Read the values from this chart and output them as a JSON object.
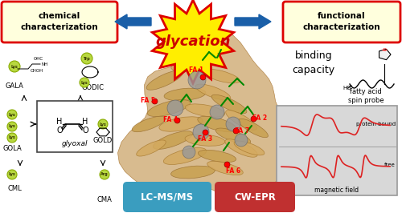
{
  "bg_color": "#ffffff",
  "left_box_text": "chemical\ncharacterization",
  "right_box_text": "functional\ncharacterization",
  "center_text": "glycation",
  "binding_capacity": "binding\ncapacity",
  "fatty_acid_spin_probe": "fatty acid\nspin probe",
  "lcmsms": "LC-MS/MS",
  "cwepr": "CW-EPR",
  "protein_bound": "protein bound",
  "free_label": "free",
  "magnetic_field": "magnetic field",
  "box_fill": "#ffffdd",
  "box_edge": "#dd0000",
  "arrow_color": "#1a5fa8",
  "star_fill": "#ffee00",
  "star_edge": "#dd0000",
  "center_text_color": "#cc0000",
  "lcms_fill": "#3a9dbf",
  "epr_fill": "#c03030",
  "epr_box_fill": "#d8d8d8",
  "epr_box_edge": "#999999",
  "green_circle_color": "#b8d840",
  "glyoxal_box_fill": "#ffffff",
  "glyoxal_box_edge": "#444444"
}
